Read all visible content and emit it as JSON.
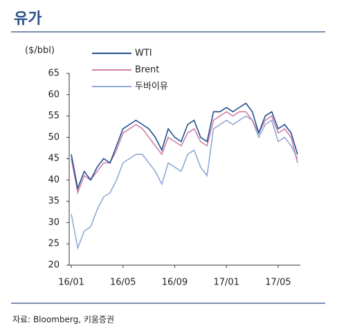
{
  "chart_data": {
    "type": "line",
    "title": "유가",
    "y_label": "($/bbl)",
    "source": "자료: Bloomberg, 키움증권",
    "categories": [
      "16/01",
      null,
      null,
      null,
      null,
      null,
      null,
      null,
      "16/05",
      null,
      null,
      null,
      null,
      null,
      null,
      null,
      "16/09",
      null,
      null,
      null,
      null,
      null,
      null,
      null,
      "17/01",
      null,
      null,
      null,
      null,
      null,
      null,
      null,
      "17/05",
      null,
      null,
      null
    ],
    "series": [
      {
        "name": "WTI",
        "color": "#1f4e8c",
        "values": [
          46,
          38,
          42,
          40,
          43,
          45,
          44,
          48,
          52,
          53,
          54,
          53,
          52,
          50,
          47,
          52,
          50,
          49,
          53,
          54,
          50,
          49,
          56,
          56,
          57,
          56,
          57,
          58,
          56,
          51,
          55,
          56,
          52,
          53,
          51,
          46
        ]
      },
      {
        "name": "Brent",
        "color": "#d07fa6",
        "values": [
          45,
          37,
          41,
          40,
          42,
          44,
          44,
          47,
          51,
          52,
          53,
          52,
          50,
          48,
          46,
          50,
          49,
          48,
          51,
          52,
          49,
          48,
          54,
          55,
          56,
          55,
          56,
          56,
          54,
          51,
          54,
          55,
          51,
          52,
          50,
          44
        ]
      },
      {
        "name": "두바이유",
        "color": "#8fa9d6",
        "values": [
          32,
          24,
          28,
          29,
          33,
          36,
          37,
          40,
          44,
          45,
          46,
          46,
          44,
          42,
          39,
          44,
          43,
          42,
          46,
          47,
          43,
          41,
          52,
          53,
          54,
          53,
          54,
          55,
          54,
          50,
          53,
          54,
          49,
          50,
          48,
          45
        ]
      }
    ],
    "ylim": [
      20,
      65
    ],
    "yticks": [
      20,
      25,
      30,
      35,
      40,
      45,
      50,
      55,
      60,
      65
    ]
  }
}
